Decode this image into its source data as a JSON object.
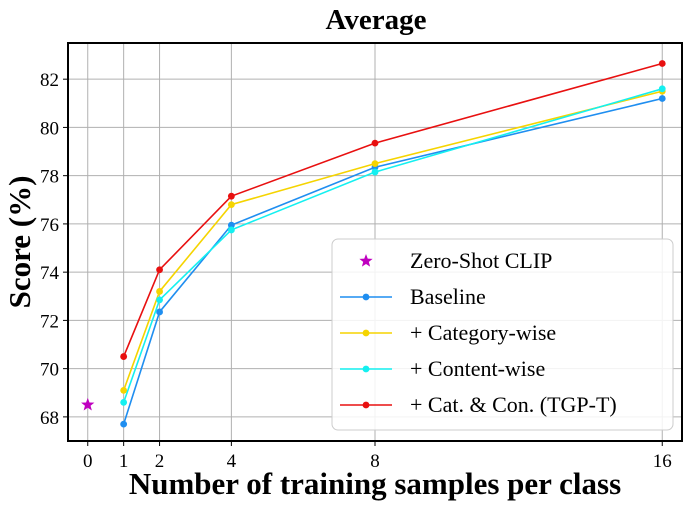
{
  "chart_data": {
    "type": "line",
    "title": "Average",
    "xlabel": "Number of training samples per class",
    "ylabel": "Score (%)",
    "x_ticks": [
      0,
      1,
      2,
      4,
      8,
      16
    ],
    "y_ticks": [
      68,
      70,
      72,
      74,
      76,
      78,
      80,
      82
    ],
    "xlim": [
      -0.55,
      16.55
    ],
    "ylim": [
      67.0,
      83.5
    ],
    "grid": true,
    "legend_position": "bottom-right",
    "zero_shot": {
      "name": "Zero-Shot CLIP",
      "x": 0,
      "y": 68.5,
      "color": "#bf00bf",
      "marker": "star"
    },
    "series": [
      {
        "name": "Baseline",
        "color": "#1f8ef0",
        "x": [
          1,
          2,
          4,
          8,
          16
        ],
        "values": [
          67.7,
          72.35,
          75.95,
          78.35,
          81.2
        ]
      },
      {
        "name": "+ Category-wise",
        "color": "#f5d400",
        "x": [
          1,
          2,
          4,
          8,
          16
        ],
        "values": [
          69.1,
          73.2,
          76.8,
          78.5,
          81.5
        ]
      },
      {
        "name": "+ Content-wise",
        "color": "#14f0f0",
        "x": [
          1,
          2,
          4,
          8,
          16
        ],
        "values": [
          68.6,
          72.85,
          75.75,
          78.15,
          81.6
        ]
      },
      {
        "name": "+ Cat. & Con. (TGP-T)",
        "color": "#e81010",
        "x": [
          1,
          2,
          4,
          8,
          16
        ],
        "values": [
          70.5,
          74.1,
          77.15,
          79.35,
          82.65
        ]
      }
    ]
  }
}
